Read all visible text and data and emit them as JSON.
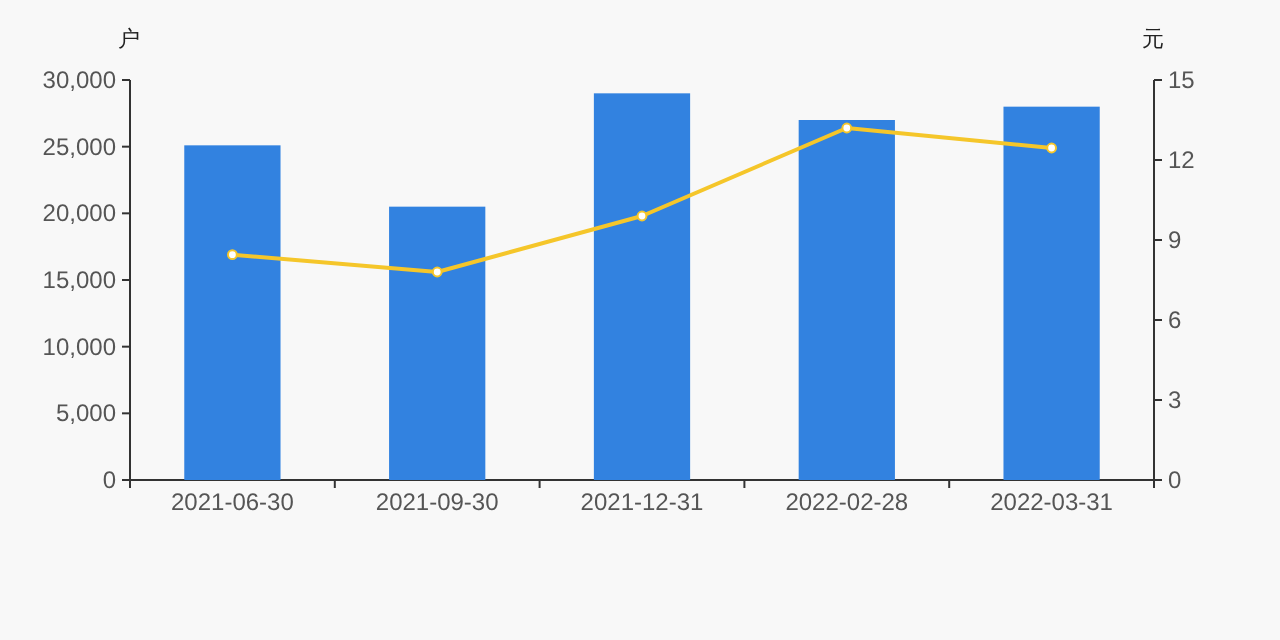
{
  "chart_data": {
    "type": "bar",
    "ylabel": "户",
    "y2label": "元",
    "categories": [
      "2021-06-30",
      "2021-09-30",
      "2021-12-31",
      "2022-02-28",
      "2022-03-31"
    ],
    "series": [
      {
        "color": "#3282e0",
        "values": [
          25100,
          20500,
          29000,
          27000,
          28000
        ]
      },
      {
        "type": "line",
        "axis": "y2",
        "color": "#f5c62a",
        "marker": "circle",
        "values": [
          8.45,
          7.8,
          9.9,
          13.2,
          12.45
        ]
      }
    ],
    "ylim": [
      0,
      30000
    ],
    "yticks": [
      0,
      {
        "value": 5000,
        "label": "5,000"
      },
      {
        "value": 10000,
        "label": "10,000"
      },
      {
        "value": 15000,
        "label": "15,000"
      },
      {
        "value": 20000,
        "label": "20,000"
      },
      {
        "value": 25000,
        "label": "25,000"
      },
      {
        "value": 30000,
        "label": "30,000"
      }
    ],
    "y2lim": [
      0,
      15
    ],
    "y2ticks": [
      0,
      3,
      6,
      9,
      12,
      15
    ]
  }
}
